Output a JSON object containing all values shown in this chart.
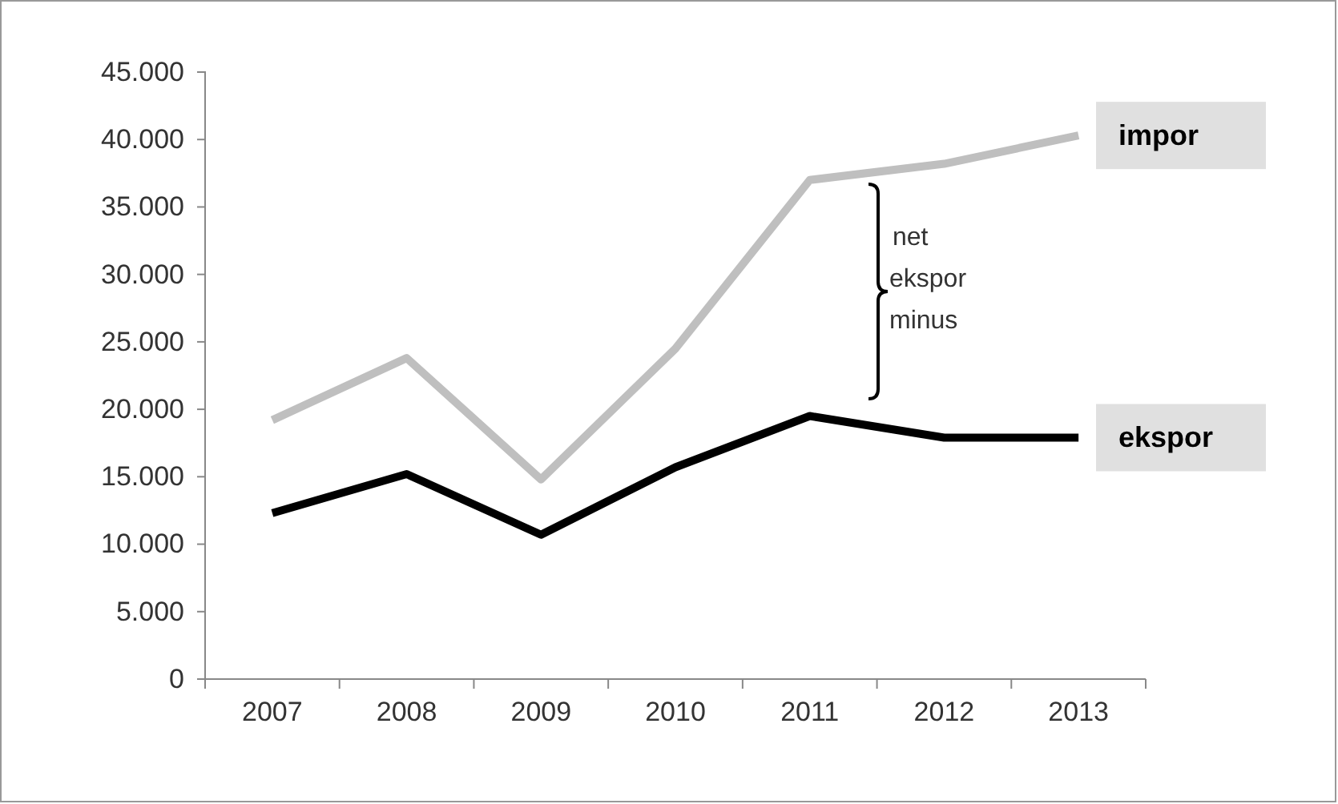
{
  "chart_data": {
    "type": "line",
    "categories": [
      "2007",
      "2008",
      "2009",
      "2010",
      "2011",
      "2012",
      "2013"
    ],
    "series": [
      {
        "name": "impor",
        "color": "#bfbfbf",
        "values": [
          19200,
          23800,
          14800,
          24500,
          37000,
          38200,
          40300
        ]
      },
      {
        "name": "ekspor",
        "color": "#000000",
        "values": [
          12300,
          15200,
          10700,
          15700,
          19500,
          17900,
          17900
        ]
      }
    ],
    "ylim": [
      0,
      45000
    ],
    "yticks": [
      {
        "value": 0,
        "label": "0"
      },
      {
        "value": 5000,
        "label": "5.000"
      },
      {
        "value": 10000,
        "label": "10.000"
      },
      {
        "value": 15000,
        "label": "15.000"
      },
      {
        "value": 20000,
        "label": "20.000"
      },
      {
        "value": 25000,
        "label": "25.000"
      },
      {
        "value": 30000,
        "label": "30.000"
      },
      {
        "value": 35000,
        "label": "35.000"
      },
      {
        "value": 40000,
        "label": "40.000"
      },
      {
        "value": 45000,
        "label": "45.000"
      }
    ],
    "grid": false,
    "legend": false,
    "marker": "none",
    "line_style": "solid",
    "annotations": [
      "net ekspor minus"
    ]
  }
}
